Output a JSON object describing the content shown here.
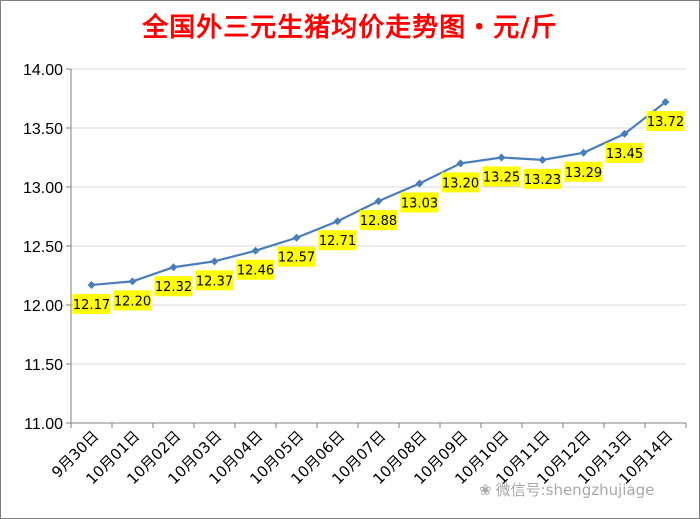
{
  "chart_data": {
    "type": "line",
    "title": "全国外三元生猪均价走势图・元/斤",
    "xlabel": "",
    "ylabel": "",
    "categories": [
      "9月30日",
      "10月01日",
      "10月02日",
      "10月03日",
      "10月04日",
      "10月05日",
      "10月06日",
      "10月07日",
      "10月08日",
      "10月09日",
      "10月10日",
      "10月11日",
      "10月12日",
      "10月13日",
      "10月14日"
    ],
    "series": [
      {
        "values": [
          12.17,
          12.2,
          12.32,
          12.37,
          12.46,
          12.57,
          12.71,
          12.88,
          13.03,
          13.2,
          13.25,
          13.23,
          13.29,
          13.45,
          13.72
        ]
      }
    ],
    "data_labels": [
      "12.17",
      "12.20",
      "12.32",
      "12.37",
      "12.46",
      "12.57",
      "12.71",
      "12.88",
      "13.03",
      "13.20",
      "13.25",
      "13.23",
      "13.29",
      "13.45",
      "13.72"
    ],
    "yticks": [
      "11.00",
      "11.50",
      "12.00",
      "12.50",
      "13.00",
      "13.50",
      "14.00"
    ],
    "ylim": [
      11.0,
      14.0
    ],
    "grid": true,
    "legend": "none",
    "colors": {
      "title": "#ff0000",
      "line": "#4a7ebb",
      "marker": "#4a7ebb",
      "label_bg": "#ffff00",
      "grid": "#d9d9d9",
      "axis": "#7f7f7f",
      "text": "#000000"
    }
  },
  "watermark": {
    "icon": "wechat-icon",
    "text": "微信号:shengzhujiage"
  }
}
